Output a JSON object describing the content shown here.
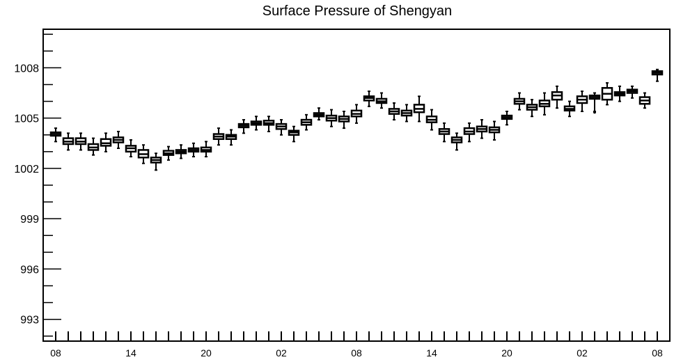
{
  "chart_data": {
    "type": "box",
    "title": "Surface Pressure of Shengyan",
    "xlabel": "",
    "ylabel": "",
    "ylim": [
      991.7,
      1010.3
    ],
    "yticks": [
      993,
      996,
      999,
      1002,
      1005,
      1008
    ],
    "xtick_labels": [
      "08",
      "14",
      "20",
      "02",
      "08",
      "14",
      "20",
      "02",
      "08"
    ],
    "grid": false,
    "boxes": [
      {
        "hour": 0,
        "q1": 1003.95,
        "median": 1004.05,
        "q3": 1004.15,
        "whisker_low": 1003.6,
        "whisker_high": 1004.4
      },
      {
        "hour": 1,
        "q1": 1003.45,
        "median": 1003.6,
        "q3": 1003.8,
        "whisker_low": 1003.1,
        "whisker_high": 1004.1
      },
      {
        "hour": 2,
        "q1": 1003.45,
        "median": 1003.6,
        "q3": 1003.8,
        "whisker_low": 1003.1,
        "whisker_high": 1004.1
      },
      {
        "hour": 3,
        "q1": 1003.1,
        "median": 1003.25,
        "q3": 1003.45,
        "whisker_low": 1002.8,
        "whisker_high": 1003.8
      },
      {
        "hour": 4,
        "q1": 1003.35,
        "median": 1003.5,
        "q3": 1003.75,
        "whisker_low": 1003.0,
        "whisker_high": 1004.1
      },
      {
        "hour": 5,
        "q1": 1003.55,
        "median": 1003.7,
        "q3": 1003.85,
        "whisker_low": 1003.2,
        "whisker_high": 1004.2
      },
      {
        "hour": 6,
        "q1": 1003.0,
        "median": 1003.2,
        "q3": 1003.35,
        "whisker_low": 1002.7,
        "whisker_high": 1003.7
      },
      {
        "hour": 7,
        "q1": 1002.65,
        "median": 1002.85,
        "q3": 1003.1,
        "whisker_low": 1002.3,
        "whisker_high": 1003.4
      },
      {
        "hour": 8,
        "q1": 1002.35,
        "median": 1002.5,
        "q3": 1002.65,
        "whisker_low": 1001.9,
        "whisker_high": 1002.9
      },
      {
        "hour": 9,
        "q1": 1002.8,
        "median": 1002.9,
        "q3": 1003.05,
        "whisker_low": 1002.5,
        "whisker_high": 1003.3
      },
      {
        "hour": 10,
        "q1": 1002.9,
        "median": 1003.0,
        "q3": 1003.1,
        "whisker_low": 1002.6,
        "whisker_high": 1003.4
      },
      {
        "hour": 11,
        "q1": 1003.0,
        "median": 1003.1,
        "q3": 1003.2,
        "whisker_low": 1002.7,
        "whisker_high": 1003.5
      },
      {
        "hour": 12,
        "q1": 1003.0,
        "median": 1003.1,
        "q3": 1003.25,
        "whisker_low": 1002.7,
        "whisker_high": 1003.6
      },
      {
        "hour": 13,
        "q1": 1003.75,
        "median": 1003.9,
        "q3": 1004.05,
        "whisker_low": 1003.4,
        "whisker_high": 1004.4
      },
      {
        "hour": 14,
        "q1": 1003.75,
        "median": 1003.9,
        "q3": 1004.0,
        "whisker_low": 1003.4,
        "whisker_high": 1004.3
      },
      {
        "hour": 15,
        "q1": 1004.45,
        "median": 1004.55,
        "q3": 1004.65,
        "whisker_low": 1004.1,
        "whisker_high": 1004.9
      },
      {
        "hour": 16,
        "q1": 1004.6,
        "median": 1004.7,
        "q3": 1004.8,
        "whisker_low": 1004.3,
        "whisker_high": 1005.1
      },
      {
        "hour": 17,
        "q1": 1004.6,
        "median": 1004.7,
        "q3": 1004.85,
        "whisker_low": 1004.2,
        "whisker_high": 1005.1
      },
      {
        "hour": 18,
        "q1": 1004.35,
        "median": 1004.5,
        "q3": 1004.65,
        "whisker_low": 1004.0,
        "whisker_high": 1004.9
      },
      {
        "hour": 19,
        "q1": 1004.0,
        "median": 1004.15,
        "q3": 1004.25,
        "whisker_low": 1003.6,
        "whisker_high": 1004.5
      },
      {
        "hour": 20,
        "q1": 1004.6,
        "median": 1004.75,
        "q3": 1004.9,
        "whisker_low": 1004.3,
        "whisker_high": 1005.2
      },
      {
        "hour": 21,
        "q1": 1005.1,
        "median": 1005.2,
        "q3": 1005.3,
        "whisker_low": 1004.9,
        "whisker_high": 1005.6
      },
      {
        "hour": 22,
        "q1": 1004.85,
        "median": 1005.0,
        "q3": 1005.15,
        "whisker_low": 1004.5,
        "whisker_high": 1005.5
      },
      {
        "hour": 23,
        "q1": 1004.8,
        "median": 1004.95,
        "q3": 1005.1,
        "whisker_low": 1004.4,
        "whisker_high": 1005.4
      },
      {
        "hour": 24,
        "q1": 1005.1,
        "median": 1005.25,
        "q3": 1005.45,
        "whisker_low": 1004.7,
        "whisker_high": 1005.8
      },
      {
        "hour": 25,
        "q1": 1006.05,
        "median": 1006.2,
        "q3": 1006.3,
        "whisker_low": 1005.7,
        "whisker_high": 1006.6
      },
      {
        "hour": 26,
        "q1": 1005.9,
        "median": 1006.0,
        "q3": 1006.15,
        "whisker_low": 1005.6,
        "whisker_high": 1006.5
      },
      {
        "hour": 27,
        "q1": 1005.25,
        "median": 1005.4,
        "q3": 1005.55,
        "whisker_low": 1004.9,
        "whisker_high": 1005.9
      },
      {
        "hour": 28,
        "q1": 1005.15,
        "median": 1005.3,
        "q3": 1005.45,
        "whisker_low": 1004.8,
        "whisker_high": 1005.8
      },
      {
        "hour": 29,
        "q1": 1005.35,
        "median": 1005.55,
        "q3": 1005.8,
        "whisker_low": 1004.8,
        "whisker_high": 1006.3
      },
      {
        "hour": 30,
        "q1": 1004.75,
        "median": 1004.9,
        "q3": 1005.1,
        "whisker_low": 1004.3,
        "whisker_high": 1005.5
      },
      {
        "hour": 31,
        "q1": 1004.05,
        "median": 1004.2,
        "q3": 1004.35,
        "whisker_low": 1003.6,
        "whisker_high": 1004.7
      },
      {
        "hour": 32,
        "q1": 1003.55,
        "median": 1003.7,
        "q3": 1003.85,
        "whisker_low": 1003.1,
        "whisker_high": 1004.1
      },
      {
        "hour": 33,
        "q1": 1004.05,
        "median": 1004.2,
        "q3": 1004.4,
        "whisker_low": 1003.6,
        "whisker_high": 1004.7
      },
      {
        "hour": 34,
        "q1": 1004.2,
        "median": 1004.35,
        "q3": 1004.5,
        "whisker_low": 1003.8,
        "whisker_high": 1004.9
      },
      {
        "hour": 35,
        "q1": 1004.15,
        "median": 1004.3,
        "q3": 1004.45,
        "whisker_low": 1003.7,
        "whisker_high": 1004.8
      },
      {
        "hour": 36,
        "q1": 1004.95,
        "median": 1005.05,
        "q3": 1005.15,
        "whisker_low": 1004.6,
        "whisker_high": 1005.4
      },
      {
        "hour": 37,
        "q1": 1005.85,
        "median": 1006.0,
        "q3": 1006.15,
        "whisker_low": 1005.5,
        "whisker_high": 1006.5
      },
      {
        "hour": 38,
        "q1": 1005.5,
        "median": 1005.65,
        "q3": 1005.8,
        "whisker_low": 1005.1,
        "whisker_high": 1006.1
      },
      {
        "hour": 39,
        "q1": 1005.7,
        "median": 1005.85,
        "q3": 1006.05,
        "whisker_low": 1005.2,
        "whisker_high": 1006.5
      },
      {
        "hour": 40,
        "q1": 1006.1,
        "median": 1006.35,
        "q3": 1006.55,
        "whisker_low": 1005.6,
        "whisker_high": 1006.9
      },
      {
        "hour": 41,
        "q1": 1005.45,
        "median": 1005.55,
        "q3": 1005.7,
        "whisker_low": 1005.1,
        "whisker_high": 1006.0
      },
      {
        "hour": 42,
        "q1": 1005.9,
        "median": 1006.1,
        "q3": 1006.3,
        "whisker_low": 1005.4,
        "whisker_high": 1006.6
      },
      {
        "hour": 43,
        "q1": 1006.15,
        "median": 1006.25,
        "q3": 1006.35,
        "whisker_low": 1005.4,
        "whisker_high": 1006.5,
        "outliers": [
          1005.35
        ]
      },
      {
        "hour": 44,
        "q1": 1006.1,
        "median": 1006.45,
        "q3": 1006.8,
        "whisker_low": 1005.8,
        "whisker_high": 1007.1
      },
      {
        "hour": 45,
        "q1": 1006.35,
        "median": 1006.45,
        "q3": 1006.55,
        "whisker_low": 1006.0,
        "whisker_high": 1006.9
      },
      {
        "hour": 46,
        "q1": 1006.5,
        "median": 1006.6,
        "q3": 1006.7,
        "whisker_low": 1006.2,
        "whisker_high": 1006.9
      },
      {
        "hour": 47,
        "q1": 1005.85,
        "median": 1006.05,
        "q3": 1006.25,
        "whisker_low": 1005.6,
        "whisker_high": 1006.5
      },
      {
        "hour": 48,
        "q1": 1007.6,
        "median": 1007.7,
        "q3": 1007.8,
        "whisker_low": 1007.2,
        "whisker_high": 1007.9
      }
    ]
  }
}
